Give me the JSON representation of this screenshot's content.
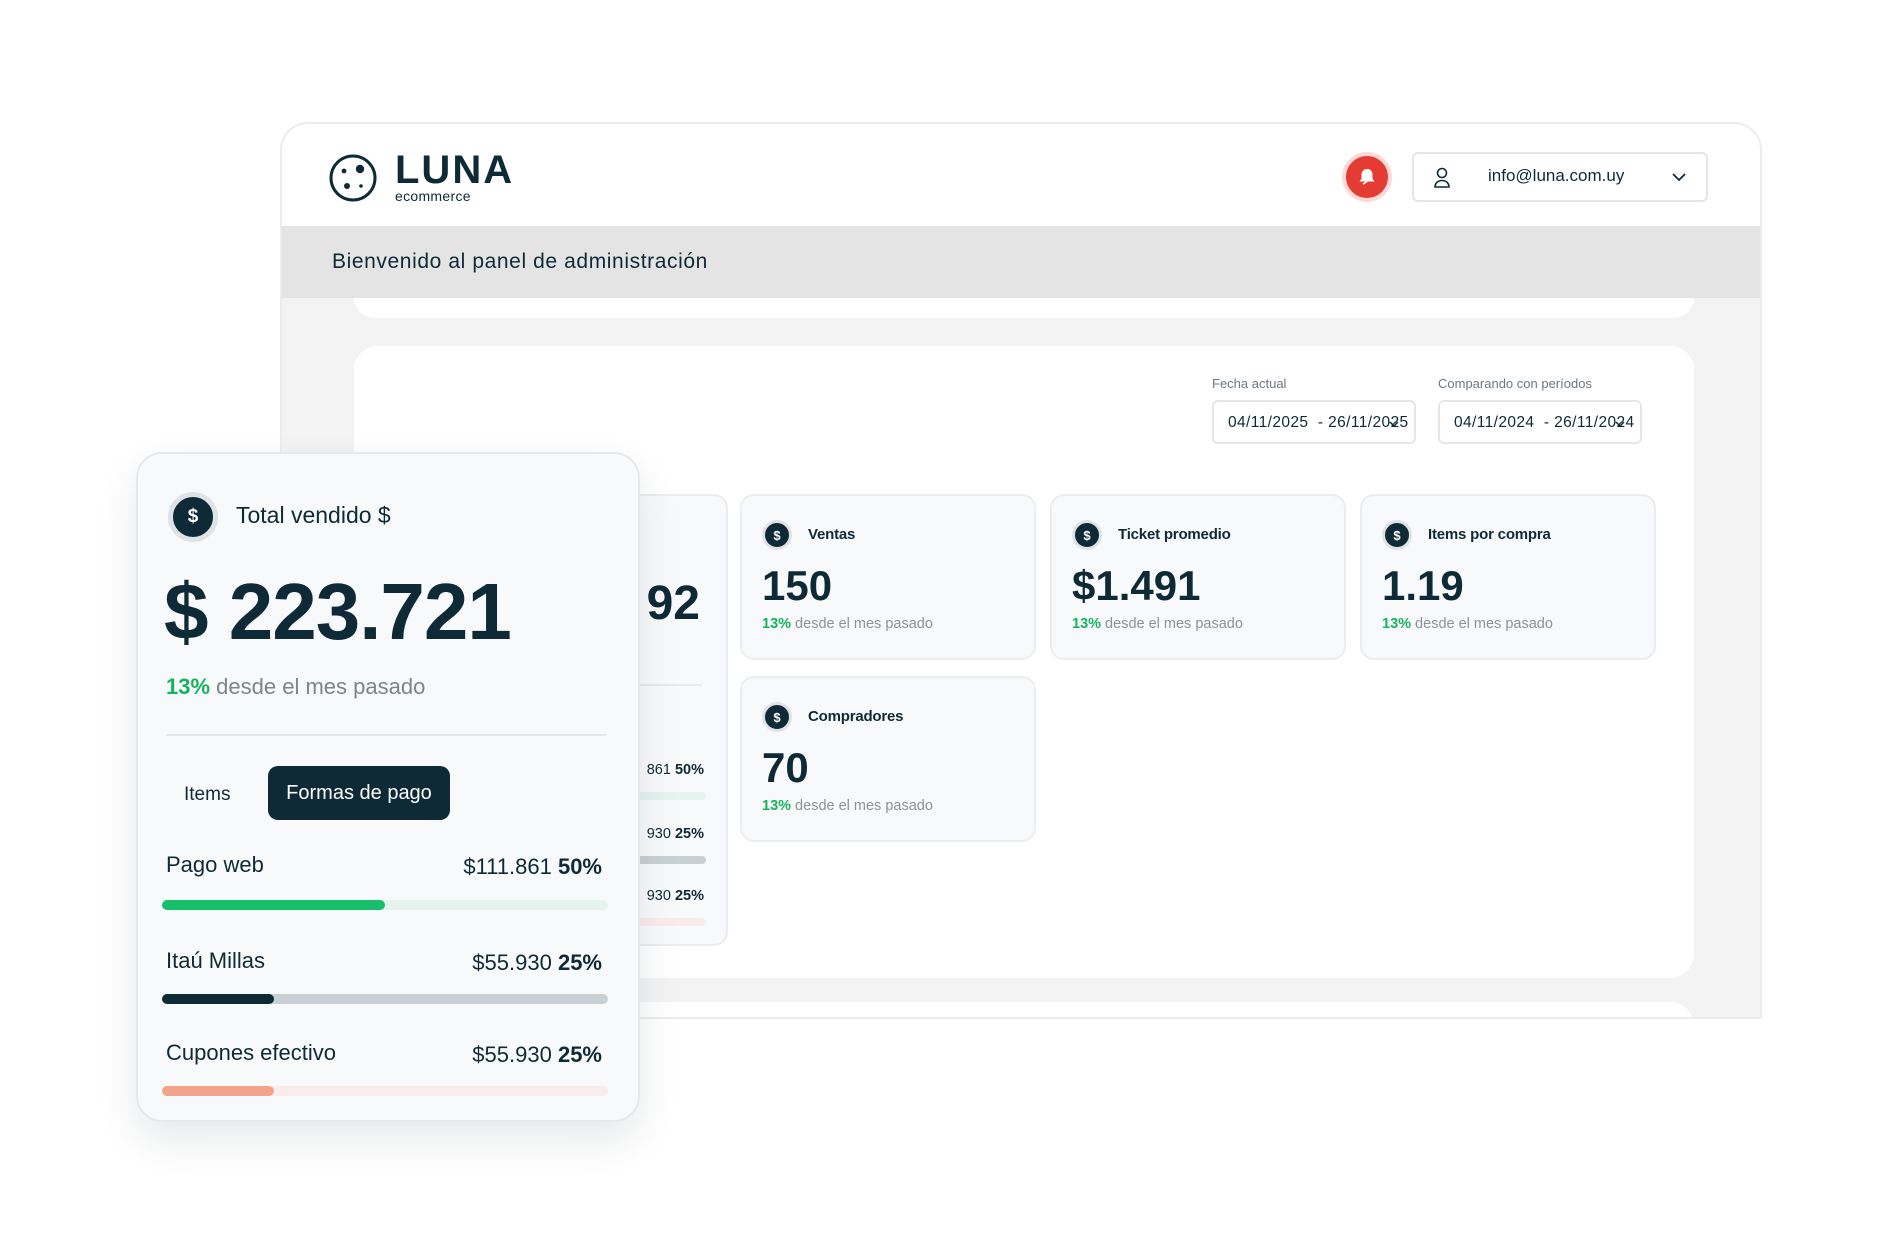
{
  "brand": {
    "name": "LUNA",
    "sub": "ecommerce"
  },
  "header": {
    "user_email": "info@luna.com.uy"
  },
  "welcome": "Bienvenido al panel de administración",
  "dates": {
    "current_label": "Fecha actual",
    "current_value": "04/11/2025  - 26/11/2025",
    "compare_label": "Comparando con períodos",
    "compare_value": "04/11/2024  - 26/11/2024"
  },
  "cards": [
    {
      "title": "Ventas",
      "value": "150",
      "pct": "13%",
      "delta": " desde el mes pasado"
    },
    {
      "title": "Ticket promedio",
      "value": "$1.491",
      "pct": "13%",
      "delta": " desde el mes pasado"
    },
    {
      "title": "Items por compra",
      "value": "1.19",
      "pct": "13%",
      "delta": " desde el mes pasado"
    },
    {
      "title": "Compradores",
      "value": "70",
      "pct": "13%",
      "delta": " desde el mes pasado"
    }
  ],
  "hidden_card": {
    "value": "92",
    "rows": [
      {
        "amount": "861",
        "pct": "50%"
      },
      {
        "amount": "930",
        "pct": "25%"
      },
      {
        "amount": "930",
        "pct": "25%"
      }
    ]
  },
  "total_card": {
    "icon_symbol": "$",
    "title": "Total vendido $",
    "total": "$ 223.721",
    "pct": "13%",
    "delta": " desde el mes pasado",
    "tabs": [
      "Items",
      "Formas de pago"
    ],
    "payments": [
      {
        "name": "Pago web",
        "amount": "$111.861",
        "pct": "50%",
        "share": 0.5,
        "color": "#16c06a",
        "track": "#e4f4ef"
      },
      {
        "name": "Itaú Millas",
        "amount": "$55.930",
        "pct": "25%",
        "share": 0.25,
        "color": "#0d2a36",
        "track": "#c9d0d4"
      },
      {
        "name": "Cupones efectivo",
        "amount": "$55.930",
        "pct": "25%",
        "share": 0.25,
        "color": "#f3a38a",
        "track": "#fbecec"
      }
    ]
  },
  "colors": {
    "primary": "#0d2a36",
    "accent_green": "#16b35e",
    "alert_red": "#e43b33"
  },
  "icons": [
    "luna-logo-icon",
    "bell-icon",
    "user-icon",
    "chevron-down-icon",
    "dollar-icon"
  ]
}
